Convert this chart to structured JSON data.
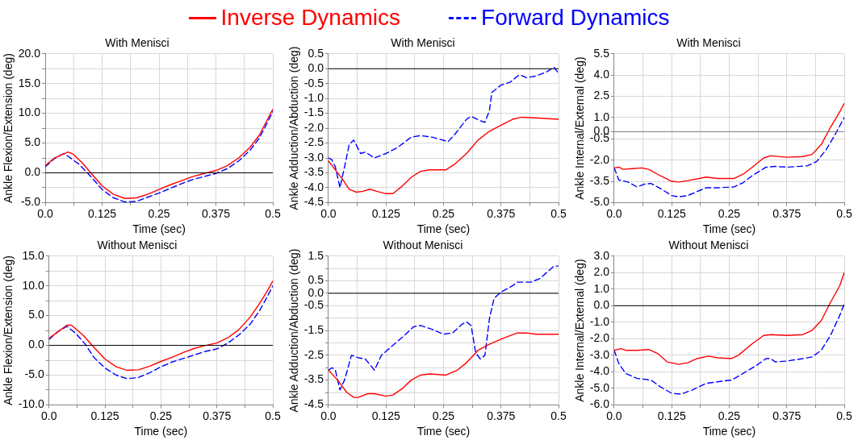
{
  "chart_data": [
    {
      "type": "line",
      "title": "With Menisci",
      "xlabel": "Time (sec)",
      "ylabel": "Ankle Flexion/Extension (deg)",
      "legend": "top",
      "grid": true,
      "marker": "none",
      "xlim": [
        0,
        0.5
      ],
      "xticks": [
        {
          "value": 0,
          "label": "0.0"
        },
        {
          "value": 0.0625,
          "label": null
        },
        0.125,
        {
          "value": 0.1875,
          "label": null
        },
        0.25,
        {
          "value": 0.3125,
          "label": null
        },
        0.375,
        {
          "value": 0.4375,
          "label": null
        },
        0.5
      ],
      "ylim": [
        -5,
        20
      ],
      "yticks": [
        {
          "value": -5,
          "label": "-5.0"
        },
        {
          "value": -2.5,
          "label": null
        },
        {
          "value": 0,
          "label": "0.0"
        },
        {
          "value": 2.5,
          "label": null
        },
        {
          "value": 5,
          "label": "5.0"
        },
        {
          "value": 7.5,
          "label": null
        },
        {
          "value": 10,
          "label": "10.0"
        },
        {
          "value": 12.5,
          "label": null
        },
        {
          "value": 15,
          "label": "15.0"
        },
        {
          "value": 17.5,
          "label": null
        },
        {
          "value": 20,
          "label": "20.0"
        }
      ],
      "ref_lines": [
        {
          "axis": "y",
          "value": 0,
          "color": "#000000"
        }
      ],
      "series": [
        {
          "name": "Inverse Dynamics",
          "color": "#ff0000",
          "line_style": "solid",
          "x": [
            0,
            0.02,
            0.035,
            0.05,
            0.06,
            0.08,
            0.1,
            0.125,
            0.15,
            0.175,
            0.2,
            0.225,
            0.25,
            0.275,
            0.3,
            0.325,
            0.35,
            0.375,
            0.4,
            0.425,
            0.45,
            0.47,
            0.485,
            0.5
          ],
          "values": [
            1.2,
            2.5,
            3.0,
            3.5,
            3.2,
            1.8,
            0,
            -2.2,
            -3.6,
            -4.3,
            -4.2,
            -3.6,
            -2.8,
            -2.0,
            -1.3,
            -0.6,
            -0.1,
            0.4,
            1.2,
            2.5,
            4.3,
            6.3,
            8.5,
            10.7
          ]
        },
        {
          "name": "Forward Dynamics",
          "color": "#0000ff",
          "line_style": "dashed",
          "x": [
            0,
            0.02,
            0.04,
            0.05,
            0.075,
            0.1,
            0.125,
            0.15,
            0.175,
            0.2,
            0.225,
            0.25,
            0.275,
            0.3,
            0.325,
            0.35,
            0.375,
            0.4,
            0.425,
            0.45,
            0.47,
            0.485,
            0.5
          ],
          "values": [
            1.0,
            2.4,
            3.2,
            2.8,
            1.4,
            -0.6,
            -2.8,
            -4.2,
            -4.9,
            -4.8,
            -4.1,
            -3.4,
            -2.6,
            -1.8,
            -1.1,
            -0.6,
            -0.1,
            0.7,
            2.0,
            3.8,
            5.8,
            8.0,
            10.3
          ]
        }
      ]
    },
    {
      "type": "line",
      "title": "With Menisci",
      "xlabel": "Time (sec)",
      "ylabel": "Ankle Adduction/Abduction (deg)",
      "grid": true,
      "marker": "none",
      "xlim": [
        0,
        0.5
      ],
      "xticks": [
        {
          "value": 0,
          "label": "0.0"
        },
        {
          "value": 0.0625,
          "label": null
        },
        0.125,
        {
          "value": 0.1875,
          "label": null
        },
        0.25,
        {
          "value": 0.3125,
          "label": null
        },
        0.375,
        {
          "value": 0.4375,
          "label": null
        },
        0.5
      ],
      "ylim": [
        -4.5,
        0.5
      ],
      "yticks": [
        -4.5,
        {
          "value": -4,
          "label": "-4.0"
        },
        -3.5,
        {
          "value": -3,
          "label": "-3.0"
        },
        -2.5,
        {
          "value": -2,
          "label": "-2.0"
        },
        -1.5,
        {
          "value": -1,
          "label": "-1.0"
        },
        -0.5,
        {
          "value": 0,
          "label": "0.0"
        },
        0.5
      ],
      "ref_lines": [
        {
          "axis": "y",
          "value": 0,
          "color": "#000000"
        }
      ],
      "series": [
        {
          "color": "#ff0000",
          "line_style": "solid",
          "x": [
            0,
            0.01,
            0.03,
            0.045,
            0.06,
            0.075,
            0.09,
            0.105,
            0.125,
            0.14,
            0.16,
            0.18,
            0.2,
            0.22,
            0.255,
            0.275,
            0.3,
            0.325,
            0.35,
            0.375,
            0.4,
            0.42,
            0.45,
            0.5
          ],
          "values": [
            -3.1,
            -3.3,
            -3.7,
            -4.05,
            -4.15,
            -4.12,
            -4.05,
            -4.12,
            -4.2,
            -4.2,
            -3.95,
            -3.65,
            -3.45,
            -3.4,
            -3.4,
            -3.2,
            -2.85,
            -2.4,
            -2.1,
            -1.9,
            -1.7,
            -1.63,
            -1.65,
            -1.7
          ]
        },
        {
          "color": "#0000ff",
          "line_style": "dashed",
          "x": [
            0,
            0.007,
            0.015,
            0.025,
            0.035,
            0.045,
            0.055,
            0.07,
            0.08,
            0.1,
            0.125,
            0.15,
            0.18,
            0.2,
            0.225,
            0.26,
            0.275,
            0.3,
            0.31,
            0.33,
            0.34,
            0.35,
            0.355,
            0.375,
            0.395,
            0.415,
            0.43,
            0.45,
            0.475,
            0.49,
            0.5
          ],
          "values": [
            -3.0,
            -3.05,
            -3.3,
            -4.0,
            -3.3,
            -2.55,
            -2.4,
            -2.85,
            -2.8,
            -3.0,
            -2.85,
            -2.65,
            -2.3,
            -2.25,
            -2.3,
            -2.45,
            -2.2,
            -1.7,
            -1.6,
            -1.75,
            -1.8,
            -1.4,
            -0.8,
            -0.55,
            -0.45,
            -0.2,
            -0.3,
            -0.25,
            -0.1,
            0.05,
            -0.15
          ]
        }
      ]
    },
    {
      "type": "line",
      "title": "With Menisci",
      "xlabel": "Time (sec)",
      "ylabel": "Ankle Internal/External (deg)",
      "grid": true,
      "marker": "none",
      "xlim": [
        0,
        0.5
      ],
      "xticks": [
        {
          "value": 0,
          "label": "0.0"
        },
        {
          "value": 0.0625,
          "label": null
        },
        0.125,
        {
          "value": 0.1875,
          "label": null
        },
        0.25,
        {
          "value": 0.3125,
          "label": null
        },
        0.375,
        {
          "value": 0.4375,
          "label": null
        },
        0.5
      ],
      "ylim": [
        -5,
        5.5
      ],
      "yticks": [
        {
          "value": -5,
          "label": "-5.0"
        },
        -3.5,
        {
          "value": -2,
          "label": "-2.0"
        },
        -0.5,
        {
          "value": 0,
          "label": "0.0"
        },
        {
          "value": 1,
          "label": "1.0"
        },
        2.5,
        {
          "value": 4,
          "label": "4.0"
        },
        5.5
      ],
      "ref_lines": [
        {
          "axis": "y",
          "value": 0,
          "color": "#808080"
        }
      ],
      "series": [
        {
          "color": "#ff0000",
          "line_style": "solid",
          "x": [
            0,
            0.01,
            0.02,
            0.04,
            0.06,
            0.075,
            0.1,
            0.125,
            0.14,
            0.16,
            0.2,
            0.225,
            0.26,
            0.28,
            0.3,
            0.325,
            0.34,
            0.375,
            0.41,
            0.43,
            0.45,
            0.47,
            0.49,
            0.5
          ],
          "values": [
            -2.55,
            -2.5,
            -2.65,
            -2.6,
            -2.55,
            -2.65,
            -3.1,
            -3.5,
            -3.55,
            -3.45,
            -3.2,
            -3.3,
            -3.3,
            -3.0,
            -2.5,
            -1.85,
            -1.7,
            -1.8,
            -1.75,
            -1.6,
            -0.9,
            0.3,
            1.4,
            2.0
          ]
        },
        {
          "color": "#0000ff",
          "line_style": "dashed",
          "x": [
            0,
            0.01,
            0.03,
            0.05,
            0.065,
            0.08,
            0.1,
            0.125,
            0.14,
            0.16,
            0.2,
            0.225,
            0.26,
            0.28,
            0.3,
            0.33,
            0.35,
            0.375,
            0.42,
            0.44,
            0.46,
            0.48,
            0.5
          ],
          "values": [
            -2.55,
            -3.4,
            -3.55,
            -3.9,
            -3.7,
            -3.65,
            -4.0,
            -4.5,
            -4.6,
            -4.5,
            -3.95,
            -3.95,
            -3.9,
            -3.6,
            -3.1,
            -2.5,
            -2.45,
            -2.5,
            -2.4,
            -2.1,
            -1.3,
            -0.2,
            1.0
          ]
        }
      ]
    },
    {
      "type": "line",
      "title": "Without Menisci",
      "xlabel": "Time (sec)",
      "ylabel": "Ankle Flexion/Extension (deg)",
      "grid": true,
      "marker": "none",
      "xlim": [
        0,
        0.5
      ],
      "xticks": [
        {
          "value": 0,
          "label": "0.0"
        },
        {
          "value": 0.0625,
          "label": null
        },
        0.125,
        {
          "value": 0.1875,
          "label": null
        },
        0.25,
        {
          "value": 0.3125,
          "label": null
        },
        0.375,
        {
          "value": 0.4375,
          "label": null
        },
        0.5
      ],
      "ylim": [
        -10,
        15
      ],
      "yticks": [
        {
          "value": -10,
          "label": "-10.0"
        },
        {
          "value": -7.5,
          "label": null
        },
        {
          "value": -5,
          "label": "-5.0"
        },
        {
          "value": -2.5,
          "label": null
        },
        {
          "value": 0,
          "label": "0.0"
        },
        {
          "value": 2.5,
          "label": null
        },
        {
          "value": 5,
          "label": "5.0"
        },
        {
          "value": 7.5,
          "label": null
        },
        {
          "value": 10,
          "label": "10.0"
        },
        {
          "value": 12.5,
          "label": null
        },
        {
          "value": 15,
          "label": "15.0"
        }
      ],
      "ref_lines": [
        {
          "axis": "y",
          "value": 0,
          "color": "#000000"
        }
      ],
      "series": [
        {
          "color": "#ff0000",
          "line_style": "solid",
          "x": [
            0,
            0.02,
            0.04,
            0.05,
            0.075,
            0.1,
            0.125,
            0.15,
            0.175,
            0.2,
            0.225,
            0.25,
            0.275,
            0.3,
            0.325,
            0.35,
            0.375,
            0.4,
            0.425,
            0.45,
            0.47,
            0.485,
            0.5
          ],
          "values": [
            1.2,
            2.3,
            3.4,
            3.4,
            1.8,
            -0.3,
            -2.3,
            -3.6,
            -4.2,
            -4.1,
            -3.5,
            -2.7,
            -2.0,
            -1.2,
            -0.5,
            0,
            0.4,
            1.3,
            2.7,
            4.8,
            7.0,
            8.8,
            10.8
          ]
        },
        {
          "color": "#0000ff",
          "line_style": "dashed",
          "x": [
            0,
            0.02,
            0.04,
            0.06,
            0.08,
            0.1,
            0.125,
            0.15,
            0.175,
            0.2,
            0.225,
            0.25,
            0.275,
            0.3,
            0.325,
            0.35,
            0.375,
            0.4,
            0.425,
            0.45,
            0.47,
            0.485,
            0.5
          ],
          "values": [
            1.0,
            2.3,
            3.2,
            2.0,
            0.3,
            -2.0,
            -3.8,
            -5.0,
            -5.6,
            -5.4,
            -4.6,
            -3.6,
            -2.8,
            -2.2,
            -1.6,
            -1.0,
            -0.6,
            0.4,
            1.8,
            3.6,
            5.8,
            7.8,
            10.0
          ]
        }
      ]
    },
    {
      "type": "line",
      "title": "Without Menisci",
      "xlabel": "Time (sec)",
      "ylabel": "Ankle Adduction/Abduction (deg)",
      "grid": true,
      "marker": "none",
      "xlim": [
        0,
        0.5
      ],
      "xticks": [
        {
          "value": 0,
          "label": "0.0"
        },
        {
          "value": 0.0625,
          "label": null
        },
        0.125,
        {
          "value": 0.1875,
          "label": null
        },
        0.25,
        {
          "value": 0.3125,
          "label": null
        },
        0.375,
        {
          "value": 0.4375,
          "label": null
        },
        0.5
      ],
      "ylim": [
        -4.5,
        1.5
      ],
      "yticks": [
        -4.5,
        {
          "value": -4,
          "label": null
        },
        -3.5,
        {
          "value": -3,
          "label": null
        },
        -2.5,
        {
          "value": -2,
          "label": null
        },
        -1.5,
        {
          "value": -1,
          "label": null
        },
        -0.5,
        {
          "value": 0,
          "label": "0.0"
        },
        0.5,
        {
          "value": 1,
          "label": null
        },
        1.5
      ],
      "ref_lines": [
        {
          "axis": "y",
          "value": 0,
          "color": "#000000"
        }
      ],
      "series": [
        {
          "color": "#ff0000",
          "line_style": "solid",
          "x": [
            0,
            0.02,
            0.04,
            0.055,
            0.065,
            0.085,
            0.1,
            0.125,
            0.14,
            0.16,
            0.18,
            0.2,
            0.22,
            0.255,
            0.28,
            0.3,
            0.325,
            0.35,
            0.375,
            0.41,
            0.43,
            0.45,
            0.5
          ],
          "values": [
            -3.1,
            -3.5,
            -4.0,
            -4.2,
            -4.2,
            -4.05,
            -4.05,
            -4.15,
            -4.1,
            -3.85,
            -3.5,
            -3.3,
            -3.25,
            -3.3,
            -3.1,
            -2.8,
            -2.3,
            -2.05,
            -1.85,
            -1.6,
            -1.6,
            -1.65,
            -1.65
          ]
        },
        {
          "color": "#0000ff",
          "line_style": "dashed",
          "x": [
            0,
            0.008,
            0.015,
            0.025,
            0.035,
            0.05,
            0.065,
            0.08,
            0.1,
            0.115,
            0.14,
            0.165,
            0.185,
            0.2,
            0.225,
            0.25,
            0.27,
            0.29,
            0.3,
            0.31,
            0.32,
            0.33,
            0.34,
            0.35,
            0.36,
            0.375,
            0.4,
            0.41,
            0.44,
            0.46,
            0.49,
            0.5
          ],
          "values": [
            -3.1,
            -3.0,
            -3.1,
            -3.9,
            -3.5,
            -2.5,
            -2.6,
            -2.65,
            -3.1,
            -2.5,
            -2.1,
            -1.7,
            -1.35,
            -1.3,
            -1.45,
            -1.65,
            -1.6,
            -1.25,
            -1.15,
            -1.3,
            -2.4,
            -2.65,
            -2.5,
            -1.0,
            -0.2,
            0.05,
            0.3,
            0.45,
            0.45,
            0.6,
            1.1,
            1.1
          ]
        }
      ]
    },
    {
      "type": "line",
      "title": "Without Menisci",
      "xlabel": "Time (sec)",
      "ylabel": "Ankle Internal/External (deg)",
      "grid": true,
      "marker": "none",
      "xlim": [
        0,
        0.5
      ],
      "xticks": [
        {
          "value": 0,
          "label": "0.0"
        },
        {
          "value": 0.0625,
          "label": null
        },
        0.125,
        {
          "value": 0.1875,
          "label": null
        },
        0.25,
        {
          "value": 0.3125,
          "label": null
        },
        0.375,
        {
          "value": 0.4375,
          "label": null
        },
        0.5
      ],
      "ylim": [
        -6,
        3
      ],
      "yticks": [
        {
          "value": -6,
          "label": "-6.0"
        },
        {
          "value": -5,
          "label": "-5.0"
        },
        {
          "value": -4,
          "label": "-4.0"
        },
        {
          "value": -3,
          "label": "-3.0"
        },
        {
          "value": -2,
          "label": "-2.0"
        },
        {
          "value": -1,
          "label": "-1.0"
        },
        {
          "value": 0,
          "label": "0.0"
        },
        {
          "value": 1,
          "label": "1.0"
        },
        {
          "value": 2,
          "label": "2.0"
        },
        {
          "value": 3,
          "label": "3.0"
        }
      ],
      "ref_lines": [
        {
          "axis": "y",
          "value": 0,
          "color": "#000000"
        }
      ],
      "series": [
        {
          "color": "#ff0000",
          "line_style": "solid",
          "x": [
            0,
            0.015,
            0.025,
            0.05,
            0.075,
            0.095,
            0.115,
            0.14,
            0.16,
            0.18,
            0.205,
            0.225,
            0.255,
            0.27,
            0.3,
            0.325,
            0.34,
            0.375,
            0.41,
            0.43,
            0.45,
            0.47,
            0.49,
            0.5
          ],
          "values": [
            -2.7,
            -2.6,
            -2.7,
            -2.7,
            -2.65,
            -2.9,
            -3.4,
            -3.55,
            -3.45,
            -3.2,
            -3.05,
            -3.15,
            -3.2,
            -3.0,
            -2.3,
            -1.8,
            -1.75,
            -1.8,
            -1.75,
            -1.5,
            -0.9,
            0.2,
            1.2,
            2.0
          ]
        },
        {
          "color": "#0000ff",
          "line_style": "dashed",
          "x": [
            0,
            0.01,
            0.025,
            0.05,
            0.08,
            0.1,
            0.125,
            0.145,
            0.17,
            0.2,
            0.225,
            0.255,
            0.28,
            0.31,
            0.33,
            0.34,
            0.35,
            0.375,
            0.41,
            0.43,
            0.45,
            0.47,
            0.49,
            0.5
          ],
          "values": [
            -2.7,
            -3.5,
            -4.1,
            -4.4,
            -4.5,
            -4.9,
            -5.3,
            -5.35,
            -5.1,
            -4.7,
            -4.6,
            -4.5,
            -4.1,
            -3.6,
            -3.2,
            -3.2,
            -3.4,
            -3.35,
            -3.2,
            -3.1,
            -2.7,
            -1.8,
            -0.6,
            0.1
          ]
        }
      ]
    }
  ]
}
